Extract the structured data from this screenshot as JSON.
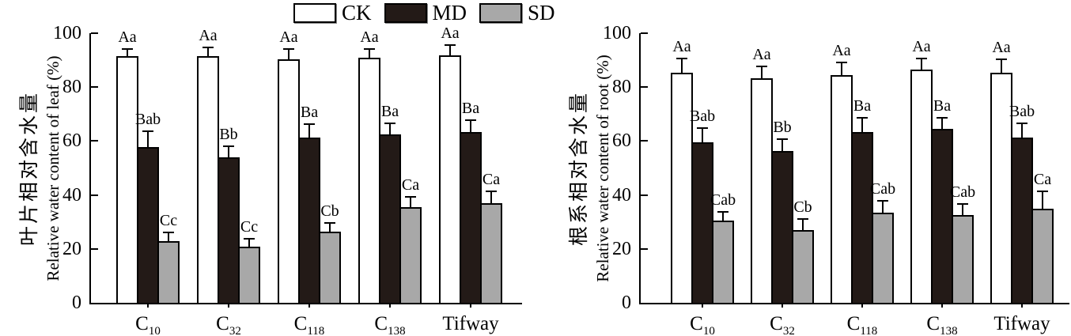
{
  "legend": {
    "items": [
      {
        "label": "CK",
        "color": "#ffffff"
      },
      {
        "label": "MD",
        "color": "#231a17"
      },
      {
        "label": "SD",
        "color": "#a8a8a8"
      }
    ]
  },
  "colors": {
    "ck": "#ffffff",
    "md": "#231a17",
    "sd": "#a8a8a8",
    "axis": "#000000"
  },
  "chart_data": [
    {
      "type": "bar",
      "id": "leaf",
      "ylabel_zh": "叶片相对含水量",
      "ylabel_en": "Relative water content of leaf (%)",
      "ylim": [
        0,
        100
      ],
      "yticks": [
        0,
        20,
        40,
        60,
        80,
        100
      ],
      "grid": false,
      "legend_position": "top-center",
      "categories": [
        {
          "base": "C",
          "sub": "10"
        },
        {
          "base": "C",
          "sub": "32"
        },
        {
          "base": "C",
          "sub": "118"
        },
        {
          "base": "C",
          "sub": "138"
        },
        {
          "base": "Tifway",
          "sub": ""
        }
      ],
      "series": [
        {
          "name": "CK",
          "color": "#ffffff",
          "values": [
            92,
            92,
            91,
            91.5,
            92.5
          ],
          "errors": [
            2.5,
            3,
            3.5,
            3,
            3.5
          ],
          "sig_labels": [
            "Aa",
            "Aa",
            "Aa",
            "Aa",
            "Aa"
          ]
        },
        {
          "name": "MD",
          "color": "#231a17",
          "values": [
            58.5,
            54.5,
            62,
            63,
            64
          ],
          "errors": [
            5.5,
            4,
            4.5,
            4,
            4
          ],
          "sig_labels": [
            "Bab",
            "Bb",
            "Ba",
            "Ba",
            "Ba"
          ]
        },
        {
          "name": "SD",
          "color": "#a8a8a8",
          "values": [
            23.5,
            21.5,
            27,
            36,
            37.5
          ],
          "errors": [
            3,
            2.5,
            3,
            3.5,
            4
          ],
          "sig_labels": [
            "Cc",
            "Cc",
            "Cb",
            "Ca",
            "Ca"
          ]
        }
      ]
    },
    {
      "type": "bar",
      "id": "root",
      "ylabel_zh": "根系相对含水量",
      "ylabel_en": "Relative water content of root (%)",
      "ylim": [
        0,
        100
      ],
      "yticks": [
        0,
        20,
        40,
        60,
        80,
        100
      ],
      "grid": false,
      "legend_position": "top-center",
      "categories": [
        {
          "base": "C",
          "sub": "10"
        },
        {
          "base": "C",
          "sub": "32"
        },
        {
          "base": "C",
          "sub": "118"
        },
        {
          "base": "C",
          "sub": "138"
        },
        {
          "base": "Tifway",
          "sub": ""
        }
      ],
      "series": [
        {
          "name": "CK",
          "color": "#ffffff",
          "values": [
            86,
            84,
            85,
            87,
            86
          ],
          "errors": [
            5,
            4,
            4.5,
            4,
            4.5
          ],
          "sig_labels": [
            "Aa",
            "Aa",
            "Aa",
            "Aa",
            "Aa"
          ]
        },
        {
          "name": "MD",
          "color": "#231a17",
          "values": [
            60,
            57,
            64,
            65,
            62
          ],
          "errors": [
            5,
            4,
            5,
            4,
            5
          ],
          "sig_labels": [
            "Bab",
            "Bb",
            "Ba",
            "Ba",
            "Bab"
          ]
        },
        {
          "name": "SD",
          "color": "#a8a8a8",
          "values": [
            31,
            27.5,
            34,
            33,
            35.5
          ],
          "errors": [
            3,
            4,
            4,
            4,
            6
          ],
          "sig_labels": [
            "Cab",
            "Cb",
            "Cab",
            "Cab",
            "Ca"
          ]
        }
      ]
    }
  ]
}
